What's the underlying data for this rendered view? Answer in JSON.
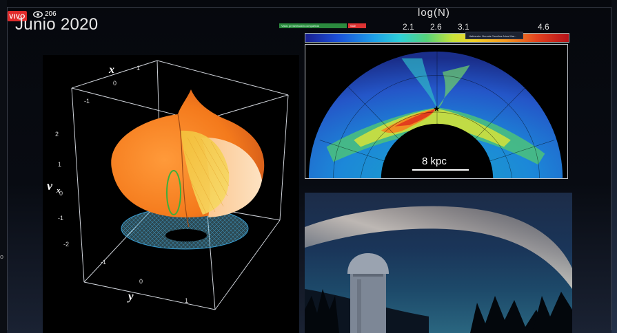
{
  "stream": {
    "live_label": "VIVO",
    "viewer_count": "206",
    "live_color": "#e02b2b",
    "stream_bar_left": "Vista: presentación compartida",
    "stream_bar_right": "Salir",
    "speaker_tag": "Hablando: Brenda Carolina Arias Mar..."
  },
  "slide": {
    "title": "Junio  2020",
    "side_glyph": "o"
  },
  "plot3d": {
    "axis_x_label": "x",
    "axis_y_label": "y",
    "axis_vx_label": "v",
    "axis_vx_sub": "x",
    "x_ticks": [
      "1",
      "0",
      "-1"
    ],
    "vx_ticks": [
      "2",
      "1",
      "0",
      "-1",
      "-2"
    ],
    "y_ticks": [
      "-1",
      "0",
      "1"
    ],
    "icons": [
      "box-frame-icon"
    ]
  },
  "heatmap": {
    "colorbar_title": "log(N)",
    "colorbar_ticks": [
      "2.1",
      "2.6",
      "3.1",
      "4.6"
    ],
    "scale_label": "8 kpc"
  },
  "photo": {
    "subject": "observatory-milky-way-photo"
  }
}
